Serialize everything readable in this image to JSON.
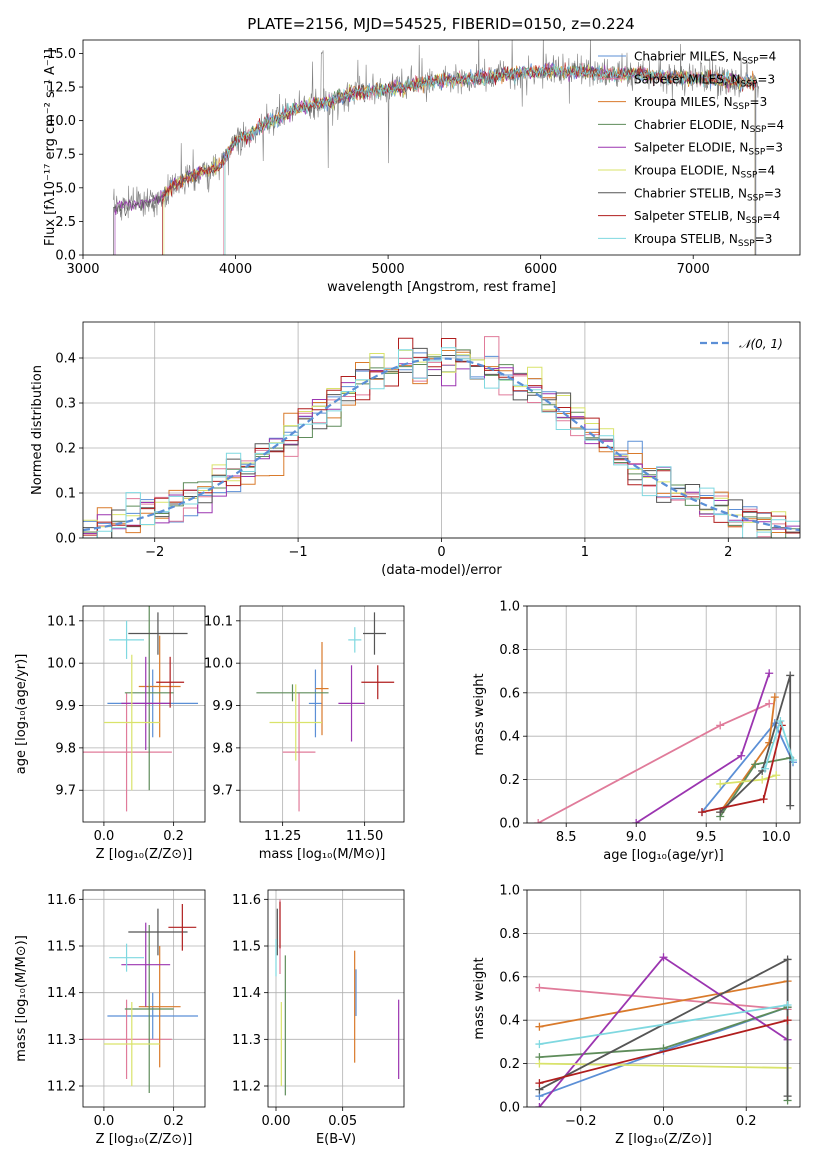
{
  "figure_title": "PLATE=2156, MJD=54525, FIBERID=0150, z=0.224",
  "models": [
    {
      "name": "Chabrier MILES, N",
      "nssp": "4",
      "color": "#5b8fd6"
    },
    {
      "name": "Salpeter MILES, N",
      "nssp": "3",
      "color": "#e07b9a"
    },
    {
      "name": "Kroupa MILES, N",
      "nssp": "3",
      "color": "#d97a2b"
    },
    {
      "name": "Chabrier ELODIE, N",
      "nssp": "4",
      "color": "#5e8c5a"
    },
    {
      "name": "Salpeter ELODIE, N",
      "nssp": "3",
      "color": "#9b35b0"
    },
    {
      "name": "Kroupa ELODIE, N",
      "nssp": "4",
      "color": "#d9e36a"
    },
    {
      "name": "Chabrier STELIB, N",
      "nssp": "3",
      "color": "#555555"
    },
    {
      "name": "Salpeter STELIB, N",
      "nssp": "4",
      "color": "#b01e1e"
    },
    {
      "name": "Kroupa STELIB, N",
      "nssp": "3",
      "color": "#7fd8e0"
    }
  ],
  "nssp_subscript": "SSP",
  "chart_data": [
    {
      "id": "spectrum",
      "type": "line",
      "xlabel": "wavelength [Angstrom, rest frame]",
      "ylabel": "Flux [fλ10⁻¹⁷ erg cm⁻² s⁻¹ A⁻¹]",
      "xlim": [
        3000,
        7700
      ],
      "ylim": [
        0,
        16
      ],
      "xticks": [
        3000,
        4000,
        5000,
        6000,
        7000
      ],
      "yticks": [
        0.0,
        2.5,
        5.0,
        7.5,
        10.0,
        12.5,
        15.0
      ],
      "data_color": "#808080",
      "continuum": {
        "x": [
          3200,
          3300,
          3400,
          3500,
          3600,
          3700,
          3800,
          3900,
          4000,
          4100,
          4200,
          4300,
          4400,
          4500,
          4600,
          4700,
          4800,
          4900,
          5000,
          5100,
          5200,
          5300,
          5400,
          5500,
          5600,
          5700,
          5800,
          5900,
          6000,
          6100,
          6200,
          6300,
          6400,
          6500,
          6600,
          6700,
          6800,
          6900,
          7000,
          7100,
          7200,
          7300,
          7400
        ],
        "y": [
          3.5,
          3.8,
          3.9,
          4.2,
          5.2,
          5.8,
          6.3,
          6.6,
          8.5,
          9.0,
          9.8,
          10.3,
          10.9,
          11.2,
          11.3,
          11.8,
          12.1,
          12.2,
          12.4,
          12.5,
          12.7,
          12.9,
          13.0,
          13.1,
          13.2,
          13.3,
          13.5,
          13.6,
          13.6,
          13.7,
          13.6,
          13.6,
          13.5,
          13.4,
          13.5,
          13.4,
          13.3,
          13.2,
          13.2,
          13.1,
          13.0,
          12.9,
          12.8
        ]
      }
    },
    {
      "id": "residuals",
      "type": "histogram",
      "xlabel": "(data-model)/error",
      "ylabel": "Normed distribution",
      "xlim": [
        -2.5,
        2.5
      ],
      "ylim": [
        0,
        0.48
      ],
      "xticks": [
        -2,
        -1,
        0,
        1,
        2
      ],
      "yticks": [
        0.0,
        0.1,
        0.2,
        0.3,
        0.4
      ],
      "bin_width": 0.1,
      "gaussian_label": "𝒩(0, 1)",
      "legend": "top-right"
    },
    {
      "id": "age_vs_Z",
      "type": "errorbar",
      "xlabel": "Z [log₁₀(Z/Z⊙)]",
      "ylabel": "age  [log₁₀(age/yr)]",
      "xlim": [
        -0.06,
        0.29
      ],
      "ylim": [
        9.625,
        10.135
      ],
      "xticks": [
        0.0,
        0.2
      ],
      "yticks": [
        9.7,
        9.8,
        9.9,
        10.0,
        10.1
      ],
      "points": [
        {
          "x": 0.14,
          "xerr": 0.13,
          "y": 9.905,
          "yerr": 0.08,
          "model": 0
        },
        {
          "x": 0.065,
          "xerr": 0.13,
          "y": 9.79,
          "yerr": 0.14,
          "model": 1
        },
        {
          "x": 0.16,
          "xerr": 0.06,
          "y": 9.945,
          "yerr": 0.12,
          "model": 2
        },
        {
          "x": 0.13,
          "xerr": 0.07,
          "y": 9.93,
          "yerr": 0.23,
          "model": 3
        },
        {
          "x": 0.12,
          "xerr": 0.07,
          "y": 9.905,
          "yerr": 0.11,
          "model": 4
        },
        {
          "x": 0.08,
          "xerr": 0.08,
          "y": 9.86,
          "yerr": 0.16,
          "model": 5
        },
        {
          "x": 0.155,
          "xerr": 0.085,
          "y": 10.07,
          "yerr": 0.05,
          "model": 6
        },
        {
          "x": 0.19,
          "xerr": 0.04,
          "y": 9.955,
          "yerr": 0.06,
          "model": 7
        },
        {
          "x": 0.065,
          "xerr": 0.05,
          "y": 10.055,
          "yerr": 0.045,
          "model": 8
        }
      ]
    },
    {
      "id": "age_vs_mass",
      "type": "errorbar",
      "xlabel": "mass [log₁₀(M/M⊙)]",
      "ylabel": "",
      "xlim": [
        11.12,
        11.62
      ],
      "ylim": [
        9.625,
        10.135
      ],
      "xticks": [
        11.25,
        11.5
      ],
      "yticks": [
        9.7,
        9.8,
        9.9,
        10.0,
        10.1
      ],
      "points": [
        {
          "x": 11.35,
          "xerr": 0.02,
          "y": 9.905,
          "yerr": 0.08,
          "model": 0
        },
        {
          "x": 11.3,
          "xerr": 0.05,
          "y": 9.79,
          "yerr": 0.14,
          "model": 1
        },
        {
          "x": 11.37,
          "xerr": 0.02,
          "y": 9.94,
          "yerr": 0.11,
          "model": 2
        },
        {
          "x": 11.28,
          "xerr": 0.11,
          "y": 9.93,
          "yerr": 0.02,
          "model": 3
        },
        {
          "x": 11.46,
          "xerr": 0.04,
          "y": 9.905,
          "yerr": 0.09,
          "model": 4
        },
        {
          "x": 11.29,
          "xerr": 0.08,
          "y": 9.86,
          "yerr": 0.09,
          "model": 5
        },
        {
          "x": 11.53,
          "xerr": 0.035,
          "y": 10.07,
          "yerr": 0.05,
          "model": 6
        },
        {
          "x": 11.54,
          "xerr": 0.05,
          "y": 9.955,
          "yerr": 0.04,
          "model": 7
        },
        {
          "x": 11.47,
          "xerr": 0.02,
          "y": 10.055,
          "yerr": 0.03,
          "model": 8
        }
      ]
    },
    {
      "id": "weight_vs_age",
      "type": "line",
      "xlabel": "age  [log₁₀(age/yr)]",
      "ylabel": "mass weight",
      "xlim": [
        8.22,
        10.17
      ],
      "ylim": [
        0,
        1
      ],
      "xticks": [
        8.5,
        9.0,
        9.5,
        10.0
      ],
      "yticks": [
        0.0,
        0.2,
        0.4,
        0.6,
        0.8,
        1.0
      ],
      "series": [
        {
          "model": 0,
          "x": [
            9.47,
            9.99,
            10.12
          ],
          "y": [
            0.05,
            0.46,
            0.28
          ]
        },
        {
          "model": 1,
          "x": [
            8.3,
            9.6,
            9.95
          ],
          "y": [
            0.0,
            0.45,
            0.55
          ]
        },
        {
          "model": 2,
          "x": [
            9.6,
            9.95,
            9.99
          ],
          "y": [
            0.05,
            0.37,
            0.58
          ]
        },
        {
          "model": 3,
          "x": [
            9.6,
            9.85,
            10.1
          ],
          "y": [
            0.03,
            0.27,
            0.3
          ]
        },
        {
          "model": 4,
          "x": [
            9.0,
            9.75,
            9.95
          ],
          "y": [
            0.0,
            0.31,
            0.69
          ]
        },
        {
          "model": 5,
          "x": [
            9.6,
            9.9,
            10.0
          ],
          "y": [
            0.18,
            0.2,
            0.22
          ]
        },
        {
          "model": 6,
          "x": [
            9.6,
            9.9,
            10.1,
            10.1
          ],
          "y": [
            0.05,
            0.24,
            0.68,
            0.08
          ]
        },
        {
          "model": 7,
          "x": [
            9.47,
            9.91,
            10.04
          ],
          "y": [
            0.05,
            0.11,
            0.45
          ]
        },
        {
          "model": 8,
          "x": [
            9.92,
            10.03,
            10.12
          ],
          "y": [
            0.25,
            0.47,
            0.29
          ]
        }
      ]
    },
    {
      "id": "mass_vs_Z",
      "type": "errorbar",
      "xlabel": "Z [log₁₀(Z/Z⊙)]",
      "ylabel": "mass [log₁₀(M/M⊙)]",
      "xlim": [
        -0.06,
        0.29
      ],
      "ylim": [
        11.155,
        11.62
      ],
      "xticks": [
        0.0,
        0.2
      ],
      "yticks": [
        11.2,
        11.3,
        11.4,
        11.5,
        11.6
      ],
      "points": [
        {
          "x": 0.14,
          "xerr": 0.13,
          "y": 11.35,
          "yerr": 0.05,
          "model": 0
        },
        {
          "x": 0.065,
          "xerr": 0.13,
          "y": 11.3,
          "yerr": 0.085,
          "model": 1
        },
        {
          "x": 0.16,
          "xerr": 0.06,
          "y": 11.37,
          "yerr": 0.13,
          "model": 2
        },
        {
          "x": 0.13,
          "xerr": 0.07,
          "y": 11.365,
          "yerr": 0.18,
          "model": 3
        },
        {
          "x": 0.12,
          "xerr": 0.07,
          "y": 11.46,
          "yerr": 0.09,
          "model": 4
        },
        {
          "x": 0.08,
          "xerr": 0.08,
          "y": 11.29,
          "yerr": 0.09,
          "model": 5
        },
        {
          "x": 0.155,
          "xerr": 0.085,
          "y": 11.53,
          "yerr": 0.05,
          "model": 6
        },
        {
          "x": 0.225,
          "xerr": 0.04,
          "y": 11.54,
          "yerr": 0.05,
          "model": 7
        },
        {
          "x": 0.065,
          "xerr": 0.05,
          "y": 11.475,
          "yerr": 0.03,
          "model": 8
        }
      ]
    },
    {
      "id": "mass_vs_EBV",
      "type": "errorbar",
      "xlabel": "E(B-V)",
      "ylabel": "",
      "xlim": [
        -0.006,
        0.096
      ],
      "ylim": [
        11.155,
        11.62
      ],
      "xticks": [
        0.0,
        0.05
      ],
      "yticks": [
        11.2,
        11.3,
        11.4,
        11.5,
        11.6
      ],
      "points": [
        {
          "x": 0.06,
          "xerr": 0,
          "y": 11.4,
          "yerr": 0.05,
          "model": 0
        },
        {
          "x": 0.003,
          "xerr": 0,
          "y": 11.52,
          "yerr": 0.08,
          "model": 1
        },
        {
          "x": 0.059,
          "xerr": 0,
          "y": 11.37,
          "yerr": 0.12,
          "model": 2
        },
        {
          "x": 0.007,
          "xerr": 0,
          "y": 11.33,
          "yerr": 0.15,
          "model": 3
        },
        {
          "x": 0.092,
          "xerr": 0,
          "y": 11.3,
          "yerr": 0.085,
          "model": 4
        },
        {
          "x": 0.004,
          "xerr": 0,
          "y": 11.29,
          "yerr": 0.09,
          "model": 5
        },
        {
          "x": 0.001,
          "xerr": 0,
          "y": 11.53,
          "yerr": 0.05,
          "model": 6
        },
        {
          "x": 0.003,
          "xerr": 0,
          "y": 11.545,
          "yerr": 0.05,
          "model": 7
        },
        {
          "x": 0.0,
          "xerr": 0,
          "y": 11.475,
          "yerr": 0.04,
          "model": 8
        }
      ]
    },
    {
      "id": "weight_vs_Z",
      "type": "line",
      "xlabel": "Z [log₁₀(Z/Z⊙)]",
      "ylabel": "mass weight",
      "xlim": [
        -0.33,
        0.33
      ],
      "ylim": [
        0,
        1
      ],
      "xticks": [
        -0.2,
        0.0,
        0.2
      ],
      "yticks": [
        0.0,
        0.2,
        0.4,
        0.6,
        0.8,
        1.0
      ],
      "series": [
        {
          "model": 0,
          "x": [
            -0.3,
            0.0,
            0.3
          ],
          "y": [
            0.05,
            0.26,
            0.46
          ]
        },
        {
          "model": 1,
          "x": [
            -0.3,
            0.3
          ],
          "y": [
            0.55,
            0.45
          ]
        },
        {
          "model": 2,
          "x": [
            -0.3,
            0.3
          ],
          "y": [
            0.37,
            0.58
          ]
        },
        {
          "model": 3,
          "x": [
            -0.3,
            0.0,
            0.3,
            0.3
          ],
          "y": [
            0.23,
            0.27,
            0.46,
            0.03
          ]
        },
        {
          "model": 4,
          "x": [
            -0.3,
            0.0,
            0.3
          ],
          "y": [
            0.0,
            0.69,
            0.31
          ]
        },
        {
          "model": 5,
          "x": [
            -0.3,
            0.3
          ],
          "y": [
            0.2,
            0.18
          ]
        },
        {
          "model": 6,
          "x": [
            -0.3,
            0.3,
            0.3
          ],
          "y": [
            0.08,
            0.68,
            0.05
          ]
        },
        {
          "model": 7,
          "x": [
            -0.3,
            0.3
          ],
          "y": [
            0.11,
            0.4
          ]
        },
        {
          "model": 8,
          "x": [
            -0.3,
            0.3
          ],
          "y": [
            0.29,
            0.47
          ]
        }
      ]
    }
  ]
}
